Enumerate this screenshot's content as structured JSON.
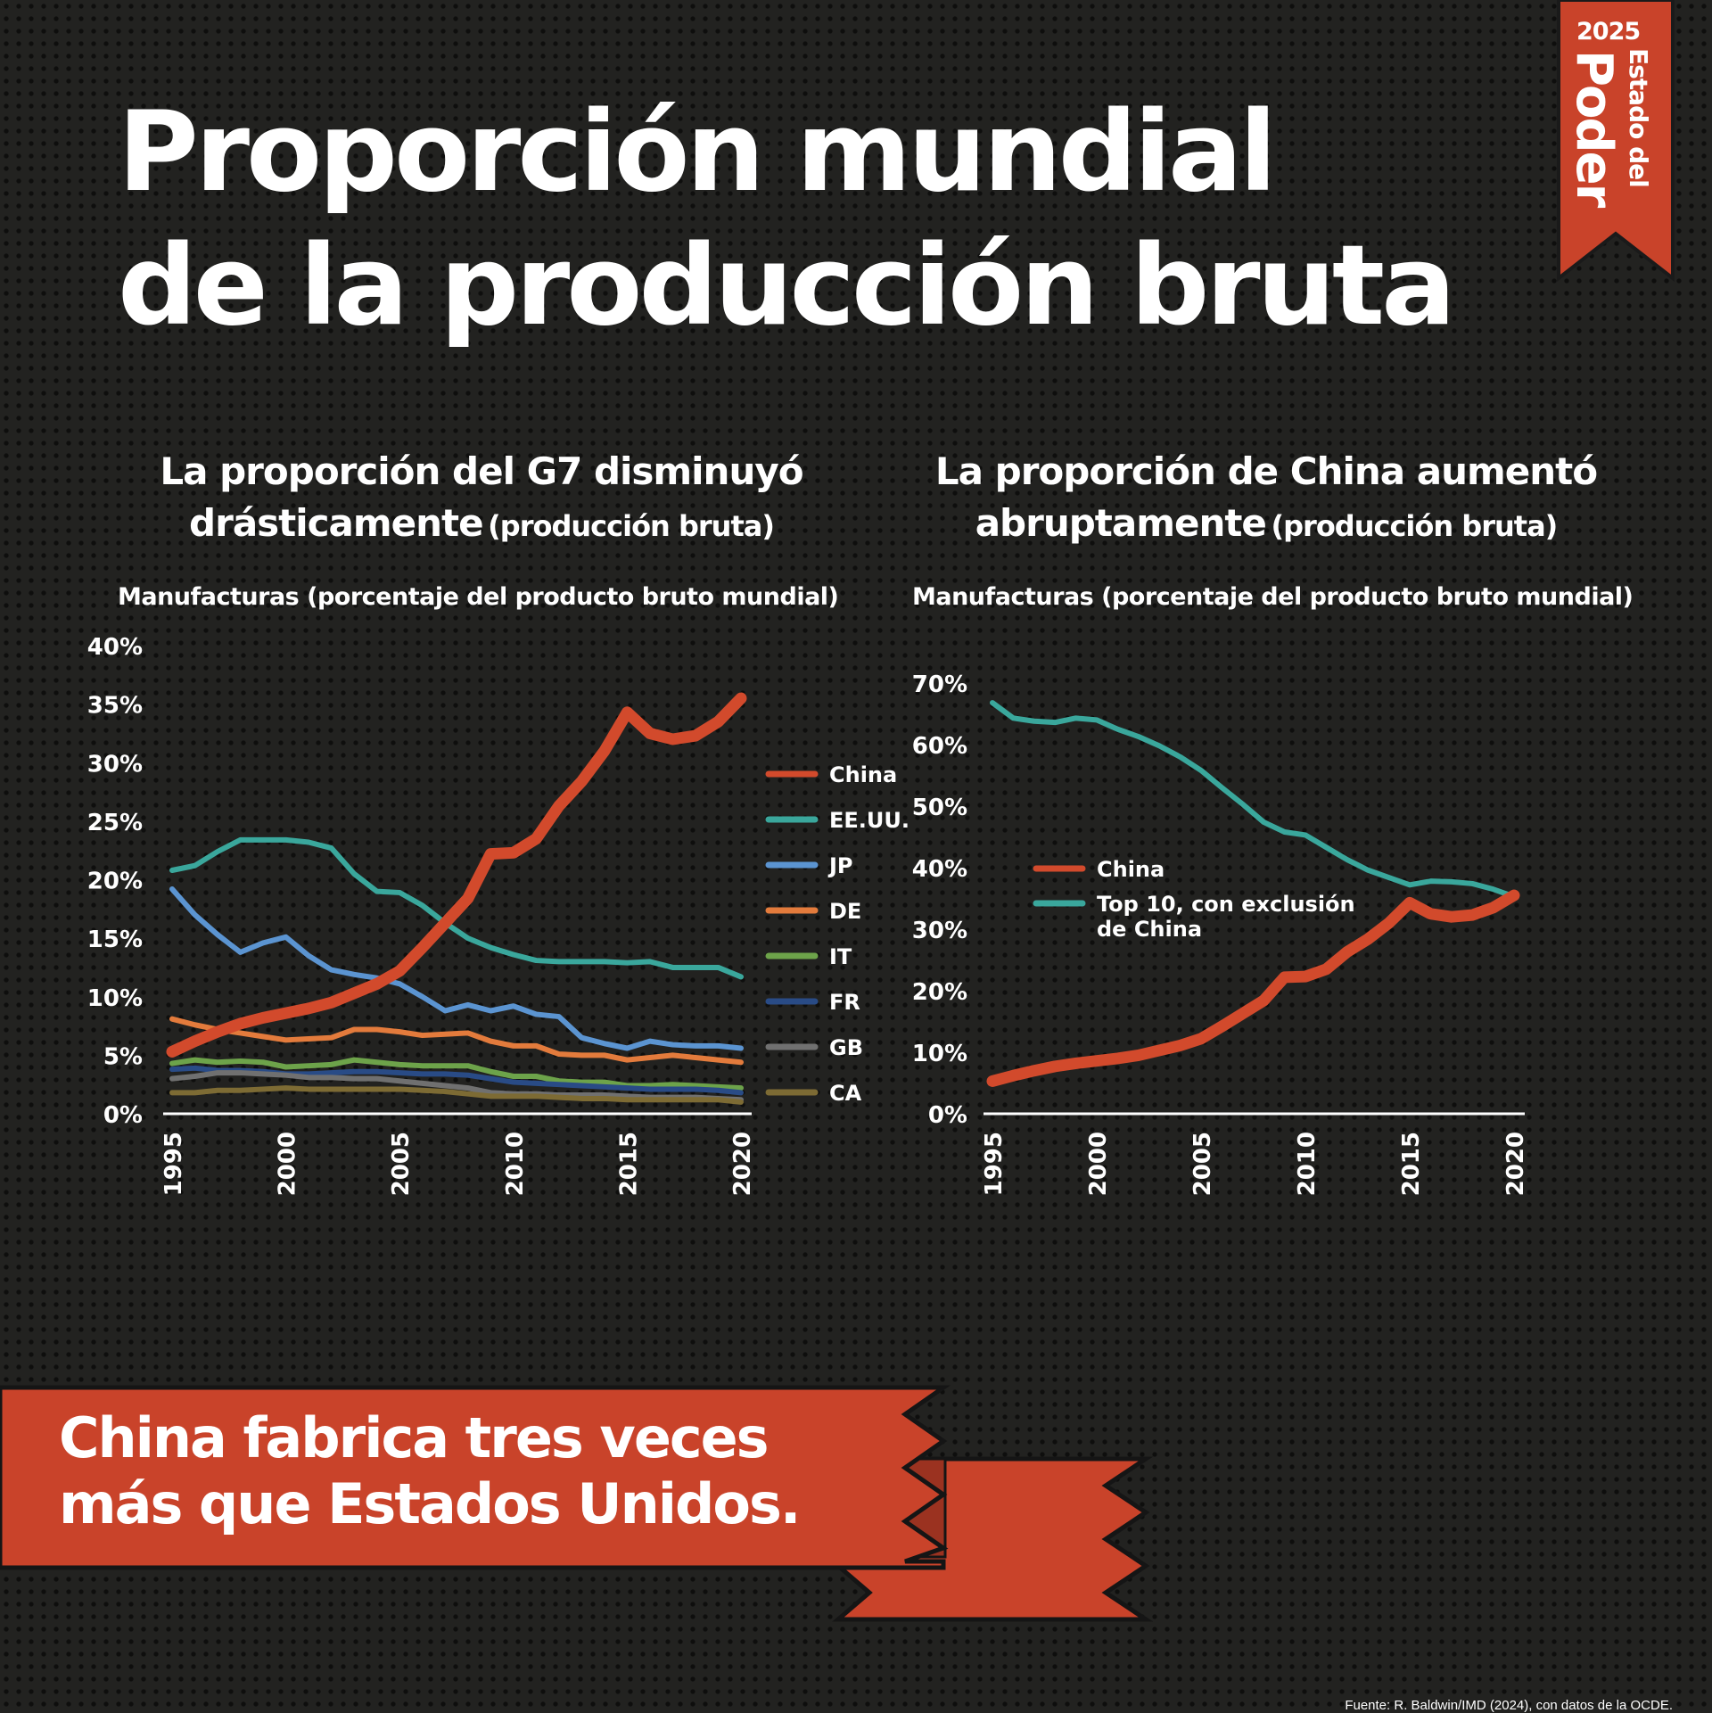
{
  "title": {
    "line1": "Proporción mundial",
    "line2": "de la producción bruta"
  },
  "badge": {
    "year": "2025",
    "line1": "Estado del",
    "line2": "Poder",
    "color": "#c9432a"
  },
  "banner": {
    "line1": "China fabrica tres veces",
    "line2": "más que Estados Unidos.",
    "color": "#c9432a"
  },
  "source": "Fuente: R. Baldwin/IMD (2024), con datos de la OCDE.",
  "chart_data": [
    {
      "type": "line",
      "title": "La proporción del G7 disminuyó",
      "title_line2": "drásticamente",
      "title_suffix": "(producción bruta)",
      "subtitle": "Manufacturas (porcentaje del producto bruto mundial)",
      "xlim": [
        1995,
        2020
      ],
      "ylim": [
        0,
        40
      ],
      "x_ticks": [
        "1995",
        "2000",
        "2005",
        "2010",
        "2015",
        "2020"
      ],
      "y_ticks": [
        "0%",
        "5%",
        "10%",
        "15%",
        "20%",
        "25%",
        "30%",
        "35%",
        "40%"
      ],
      "legend_position": "right",
      "x": [
        1995,
        1996,
        1997,
        1998,
        1999,
        2000,
        2001,
        2002,
        2003,
        2004,
        2005,
        2006,
        2007,
        2008,
        2009,
        2010,
        2011,
        2012,
        2013,
        2014,
        2015,
        2016,
        2017,
        2018,
        2019,
        2020
      ],
      "series": [
        {
          "name": "China",
          "color": "#d24a2c",
          "width": 13,
          "values": [
            5.3,
            6.2,
            7.0,
            7.7,
            8.2,
            8.6,
            9.0,
            9.5,
            10.3,
            11.1,
            12.2,
            14.2,
            16.3,
            18.4,
            22.2,
            22.3,
            23.5,
            26.3,
            28.4,
            31.0,
            34.3,
            32.5,
            32.0,
            32.3,
            33.5,
            35.5
          ]
        },
        {
          "name": "EE.UU.",
          "color": "#3aa79c",
          "width": 6,
          "values": [
            20.8,
            21.2,
            22.4,
            23.4,
            23.4,
            23.4,
            23.2,
            22.7,
            20.5,
            19.0,
            18.9,
            17.8,
            16.3,
            15.0,
            14.2,
            13.6,
            13.1,
            13.0,
            13.0,
            13.0,
            12.9,
            13.0,
            12.5,
            12.5,
            12.5,
            11.7
          ]
        },
        {
          "name": "JP",
          "color": "#5b94d1",
          "width": 6,
          "values": [
            19.2,
            17.0,
            15.3,
            13.8,
            14.6,
            15.1,
            13.5,
            12.3,
            11.9,
            11.6,
            11.1,
            10.0,
            8.8,
            9.3,
            8.8,
            9.2,
            8.5,
            8.3,
            6.5,
            6.0,
            5.6,
            6.2,
            5.9,
            5.8,
            5.8,
            5.6
          ]
        },
        {
          "name": "DE",
          "color": "#e37b3c",
          "width": 6,
          "values": [
            8.1,
            7.6,
            7.2,
            6.9,
            6.6,
            6.3,
            6.4,
            6.5,
            7.2,
            7.2,
            7.0,
            6.7,
            6.8,
            6.9,
            6.2,
            5.8,
            5.8,
            5.1,
            5.0,
            5.0,
            4.6,
            4.8,
            5.0,
            4.8,
            4.6,
            4.4
          ]
        },
        {
          "name": "IT",
          "color": "#6da34a",
          "width": 6,
          "values": [
            4.3,
            4.6,
            4.4,
            4.5,
            4.4,
            4.0,
            4.1,
            4.2,
            4.6,
            4.4,
            4.2,
            4.1,
            4.1,
            4.1,
            3.6,
            3.2,
            3.2,
            2.8,
            2.7,
            2.7,
            2.4,
            2.4,
            2.5,
            2.4,
            2.3,
            2.2
          ]
        },
        {
          "name": "FR",
          "color": "#294b86",
          "width": 6,
          "values": [
            3.8,
            3.9,
            3.7,
            3.7,
            3.6,
            3.4,
            3.4,
            3.5,
            3.6,
            3.6,
            3.5,
            3.4,
            3.4,
            3.3,
            3.0,
            2.7,
            2.6,
            2.5,
            2.4,
            2.3,
            2.2,
            2.1,
            2.1,
            2.1,
            2.0,
            1.8
          ]
        },
        {
          "name": "GB",
          "color": "#707070",
          "width": 6,
          "values": [
            3.0,
            3.2,
            3.5,
            3.5,
            3.4,
            3.3,
            3.1,
            3.1,
            3.0,
            3.0,
            2.8,
            2.6,
            2.4,
            2.2,
            1.8,
            1.7,
            1.7,
            1.6,
            1.6,
            1.6,
            1.5,
            1.4,
            1.4,
            1.4,
            1.3,
            1.2
          ]
        },
        {
          "name": "CA",
          "color": "#7d6b34",
          "width": 6,
          "values": [
            1.8,
            1.8,
            2.0,
            2.0,
            2.1,
            2.2,
            2.1,
            2.1,
            2.1,
            2.1,
            2.1,
            2.0,
            1.9,
            1.7,
            1.5,
            1.5,
            1.5,
            1.4,
            1.3,
            1.3,
            1.2,
            1.2,
            1.2,
            1.2,
            1.2,
            1.0
          ]
        }
      ]
    },
    {
      "type": "line",
      "title": "La proporción de China aumentó",
      "title_line2": "abruptamente",
      "title_suffix": "(producción bruta)",
      "subtitle": "Manufacturas (porcentaje del producto bruto mundial)",
      "xlim": [
        1995,
        2020
      ],
      "ylim": [
        0,
        70
      ],
      "x_ticks": [
        "1995",
        "2000",
        "2005",
        "2010",
        "2015",
        "2020"
      ],
      "y_ticks": [
        "0%",
        "10%",
        "20%",
        "30%",
        "40%",
        "50%",
        "60%",
        "70%"
      ],
      "legend_position": "center",
      "x": [
        1995,
        1996,
        1997,
        1998,
        1999,
        2000,
        2001,
        2002,
        2003,
        2004,
        2005,
        2006,
        2007,
        2008,
        2009,
        2010,
        2011,
        2012,
        2013,
        2014,
        2015,
        2016,
        2017,
        2018,
        2019,
        2020
      ],
      "series": [
        {
          "name": "China",
          "color": "#d24a2c",
          "width": 13,
          "values": [
            5.3,
            6.2,
            7.0,
            7.7,
            8.2,
            8.6,
            9.0,
            9.5,
            10.3,
            11.1,
            12.2,
            14.2,
            16.3,
            18.4,
            22.2,
            22.3,
            23.5,
            26.3,
            28.4,
            31.0,
            34.3,
            32.5,
            32.0,
            32.3,
            33.5,
            35.5
          ]
        },
        {
          "name": "Top 10, con exclusión",
          "name_line2": "de China",
          "color": "#3aa79c",
          "width": 6,
          "values": [
            66.8,
            64.3,
            63.8,
            63.6,
            64.3,
            64.0,
            62.5,
            61.3,
            59.8,
            58.0,
            55.8,
            53.0,
            50.3,
            47.4,
            45.8,
            45.3,
            43.3,
            41.3,
            39.6,
            38.4,
            37.2,
            37.8,
            37.7,
            37.4,
            36.5,
            35.3
          ]
        }
      ]
    }
  ]
}
